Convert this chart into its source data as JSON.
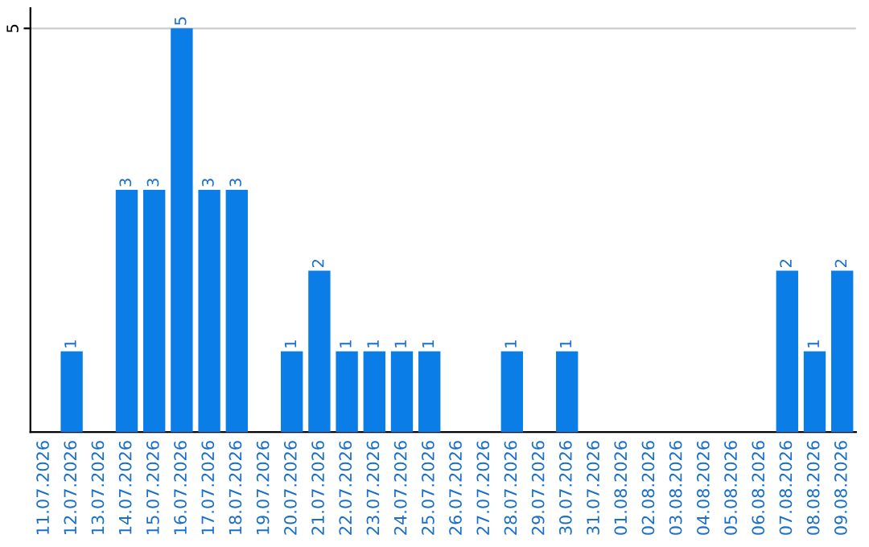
{
  "chart_data": {
    "type": "bar",
    "categories": [
      "11.07.2026",
      "12.07.2026",
      "13.07.2026",
      "14.07.2026",
      "15.07.2026",
      "16.07.2026",
      "17.07.2026",
      "18.07.2026",
      "19.07.2026",
      "20.07.2026",
      "21.07.2026",
      "22.07.2026",
      "23.07.2026",
      "24.07.2026",
      "25.07.2026",
      "26.07.2026",
      "27.07.2026",
      "28.07.2026",
      "29.07.2026",
      "30.07.2026",
      "31.07.2026",
      "01.08.2026",
      "02.08.2026",
      "03.08.2026",
      "04.08.2026",
      "05.08.2026",
      "06.08.2026",
      "07.08.2026",
      "08.08.2026",
      "09.08.2026"
    ],
    "values": [
      0,
      1,
      0,
      3,
      3,
      5,
      3,
      3,
      0,
      1,
      2,
      1,
      1,
      1,
      1,
      0,
      0,
      1,
      0,
      1,
      0,
      0,
      0,
      0,
      0,
      0,
      0,
      2,
      1,
      2
    ],
    "value_labels": [
      null,
      "1",
      null,
      "3",
      "3",
      "5",
      "3",
      "3",
      null,
      "1",
      "2",
      "1",
      "1",
      "1",
      "1",
      null,
      null,
      "1",
      null,
      "1",
      null,
      null,
      null,
      null,
      null,
      null,
      null,
      "2",
      "1",
      "2"
    ],
    "color": "#0a7de6",
    "ylim": [
      0,
      5.25
    ],
    "yticks": [
      5
    ],
    "grid": "y",
    "legend": false
  }
}
